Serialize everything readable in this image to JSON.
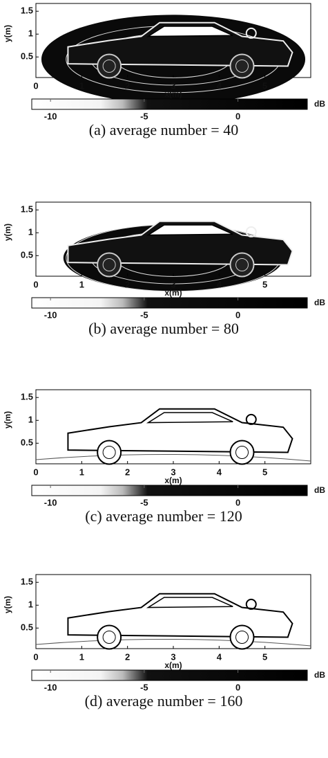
{
  "figure": {
    "xlabel": "x(m)",
    "ylabel": "y(m)",
    "unit": "dB",
    "xlim": [
      0,
      6
    ],
    "ylim": [
      0.05,
      1.67
    ],
    "xticks": [
      0,
      1,
      2,
      3,
      4,
      5
    ],
    "yticks": [
      0.5,
      1,
      1.5
    ],
    "clim": [
      -11,
      3.7
    ],
    "cticks": [
      -10,
      -5,
      0
    ],
    "panels": [
      {
        "caption": "(a) average number = 40"
      },
      {
        "caption": "(b) average number = 80"
      },
      {
        "caption": "(c) average number = 120"
      },
      {
        "caption": "(d) average number = 160"
      }
    ]
  }
}
